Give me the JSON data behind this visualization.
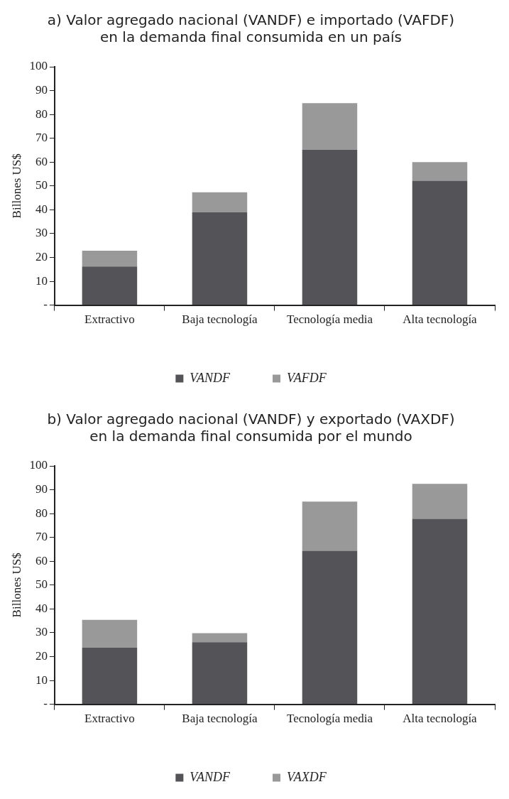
{
  "chart_data": [
    {
      "type": "bar",
      "title": "a) Valor agregado nacional (VANDF) e importado (VAFDF) en la demanda final consumida en un país",
      "ylabel": "Billones US$",
      "categories": [
        "Extractivo",
        "Baja tecnología",
        "Tecnología media",
        "Alta tecnología"
      ],
      "stacked": true,
      "series": [
        {
          "name": "VANDF",
          "color": "#535358",
          "values": [
            16.2,
            38.9,
            65.1,
            52.2
          ]
        },
        {
          "name": "VAFDF",
          "color": "#999999",
          "values": [
            6.6,
            8.4,
            19.6,
            7.8
          ]
        }
      ],
      "ylim": [
        0,
        100
      ],
      "yticks": [
        {
          "value": 0,
          "label": "-"
        },
        10,
        20,
        30,
        40,
        50,
        60,
        70,
        80,
        90,
        100
      ],
      "grid": false,
      "legend": "bottom"
    },
    {
      "type": "bar",
      "title": "b) Valor agregado nacional (VANDF) y exportado (VAXDF) en la demanda final consumida por el mundo",
      "ylabel": "Billones US$",
      "categories": [
        "Extractivo",
        "Baja tecnología",
        "Tecnología media",
        "Alta tecnología"
      ],
      "stacked": true,
      "series": [
        {
          "name": "VANDF",
          "color": "#535358",
          "values": [
            23.8,
            26.0,
            64.4,
            77.8
          ]
        },
        {
          "name": "VAXDF",
          "color": "#999999",
          "values": [
            11.6,
            3.8,
            20.6,
            14.7
          ]
        }
      ],
      "ylim": [
        0,
        100
      ],
      "yticks": [
        {
          "value": 0,
          "label": "-"
        },
        10,
        20,
        30,
        40,
        50,
        60,
        70,
        80,
        90,
        100
      ],
      "grid": false,
      "legend": "bottom"
    }
  ]
}
